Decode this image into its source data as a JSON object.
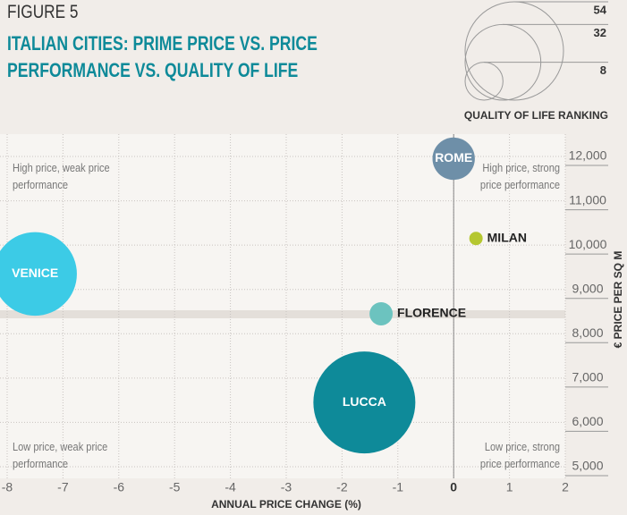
{
  "chart_data": {
    "type": "bubble",
    "figure": "FIGURE 5",
    "title": "ITALIAN CITIES: PRIME PRICE VS. PRICE PERFORMANCE VS. QUALITY OF LIFE",
    "x_label": "ANNUAL PRICE CHANGE (%)",
    "y_label": "€ PRICE PER SQ M",
    "annotations": [
      "High price, weak price performance",
      "High price, strong price performance",
      "Low price, weak price performance",
      "Low price, strong price performance"
    ],
    "categories": [
      "ROME",
      "MILAN",
      "VENICE",
      "FLORENCE",
      "LUCCA"
    ],
    "x": [
      0,
      0.4,
      -7.5,
      -1.3,
      -1.6
    ],
    "values": [
      11950,
      10150,
      9350,
      8450,
      6450
    ],
    "sizes": [
      10,
      1,
      39,
      3,
      58
    ],
    "colors": [
      "#6e8fa8",
      "#b5c730",
      "#3ccbe6",
      "#6cc3bf",
      "#0e8a99"
    ],
    "size_legend": {
      "title": "QUALITY OF LIFE RANKING",
      "values": [
        54,
        32,
        8
      ]
    },
    "xlim": [
      -8,
      2
    ],
    "xticks": [
      -8,
      -7,
      -6,
      -5,
      -4,
      -3,
      -2,
      -1,
      0,
      1,
      2
    ],
    "ylim": [
      5000,
      12000
    ],
    "yticks": [
      {
        "value": 5000,
        "label": "5,000"
      },
      {
        "value": 6000,
        "label": "6,000"
      },
      {
        "value": 7000,
        "label": "7,000"
      },
      {
        "value": 8000,
        "label": "8,000"
      },
      {
        "value": 9000,
        "label": "9,000"
      },
      {
        "value": 10000,
        "label": "10,000"
      },
      {
        "value": 11000,
        "label": "11,000"
      },
      {
        "value": 12000,
        "label": "12,000"
      }
    ],
    "grid": true
  }
}
